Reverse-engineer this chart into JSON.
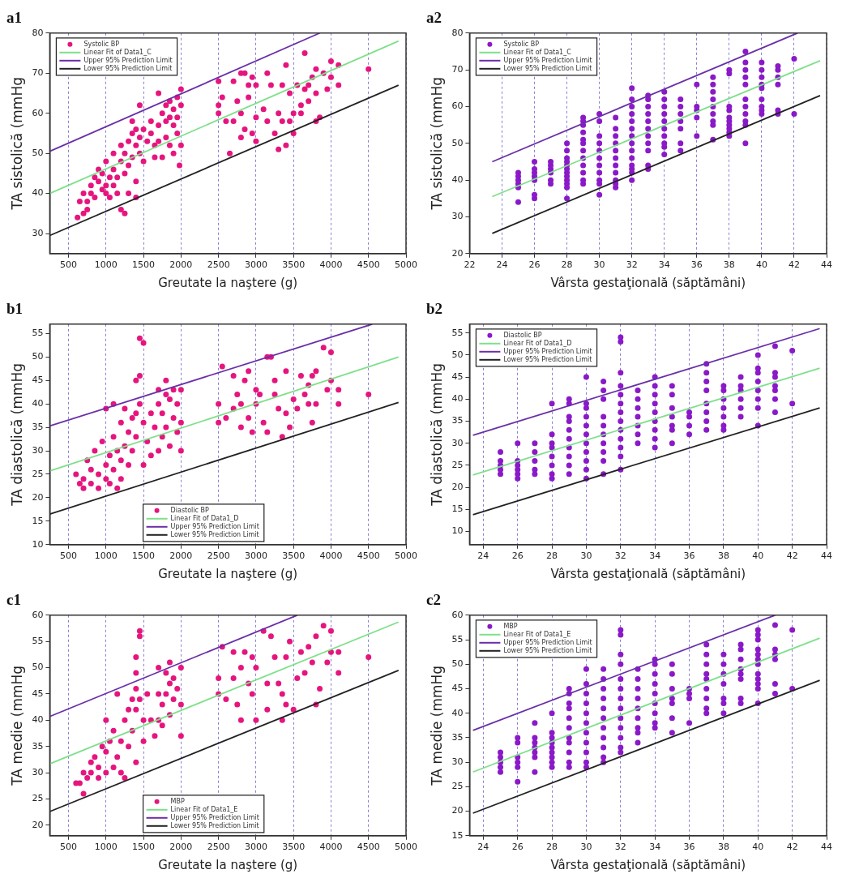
{
  "chart_data": [
    {
      "type": "scatter",
      "title": "a1",
      "xlabel": "Greutate la naştere (g)",
      "ylabel": "TA sistolică (mmHg",
      "xlim": [
        250,
        5000
      ],
      "xticks": [
        500,
        1000,
        1500,
        2000,
        2500,
        3000,
        3500,
        4000,
        4500,
        5000
      ],
      "ylim": [
        25,
        80
      ],
      "yticks": [
        30,
        40,
        50,
        60,
        70,
        80
      ],
      "grid": "x",
      "legend": "top left",
      "series": [
        {
          "name": "Systolic BP",
          "marker": "circle",
          "color": "#e6157e",
          "x": [
            620,
            650,
            700,
            700,
            750,
            750,
            800,
            800,
            850,
            850,
            900,
            900,
            950,
            950,
            1000,
            1000,
            1000,
            1050,
            1050,
            1100,
            1100,
            1100,
            1150,
            1150,
            1200,
            1200,
            1200,
            1250,
            1250,
            1250,
            1300,
            1300,
            1300,
            1350,
            1350,
            1350,
            1400,
            1400,
            1400,
            1400,
            1450,
            1450,
            1450,
            1500,
            1500,
            1550,
            1600,
            1600,
            1650,
            1650,
            1700,
            1700,
            1700,
            1750,
            1750,
            1800,
            1800,
            1800,
            1850,
            1850,
            1850,
            1900,
            1900,
            1900,
            1950,
            1950,
            1950,
            2000,
            2000,
            2000,
            1980,
            2500,
            2500,
            2500,
            2550,
            2600,
            2650,
            2700,
            2700,
            2750,
            2800,
            2800,
            2800,
            2850,
            2850,
            2900,
            2900,
            2950,
            2950,
            3000,
            3000,
            3000,
            3100,
            3150,
            3150,
            3200,
            3250,
            3300,
            3300,
            3350,
            3350,
            3400,
            3400,
            3450,
            3450,
            3500,
            3500,
            3550,
            3600,
            3600,
            3650,
            3650,
            3700,
            3700,
            3750,
            3800,
            3800,
            3800,
            3850,
            3900,
            3950,
            4000,
            4000,
            4100,
            4100,
            4500
          ],
          "values": [
            34,
            38,
            35,
            40,
            36,
            38,
            40,
            42,
            44,
            39,
            46,
            43,
            45,
            41,
            42,
            48,
            40,
            44,
            39,
            46,
            42,
            50,
            40,
            44,
            36,
            48,
            52,
            35,
            45,
            50,
            40,
            53,
            47,
            49,
            55,
            58,
            52,
            56,
            43,
            39,
            50,
            54,
            62,
            48,
            56,
            53,
            55,
            58,
            52,
            49,
            65,
            57,
            53,
            60,
            49,
            62,
            58,
            54,
            63,
            59,
            52,
            61,
            57,
            50,
            64,
            59,
            55,
            66,
            62,
            52,
            47,
            68,
            62,
            60,
            64,
            58,
            50,
            68,
            58,
            63,
            70,
            60,
            54,
            70,
            56,
            67,
            64,
            55,
            69,
            67,
            59,
            53,
            61,
            70,
            58,
            67,
            55,
            60,
            51,
            67,
            58,
            72,
            52,
            65,
            58,
            60,
            55,
            67,
            62,
            60,
            75,
            66,
            63,
            67,
            69,
            71,
            65,
            58,
            59,
            70,
            66,
            73,
            69,
            72,
            67,
            71
          ]
        },
        {
          "name": "Linear Fit of Data1_C",
          "type": "line",
          "color": "#7ee08a",
          "x": [
            250,
            4900
          ],
          "values": [
            40,
            78
          ]
        },
        {
          "name": "Upper 95% Prediction Limit",
          "type": "line",
          "color": "#6a2fa8",
          "x": [
            250,
            3850
          ],
          "values": [
            50.5,
            80
          ]
        },
        {
          "name": "Lower 95% Prediction Limit",
          "type": "line",
          "color": "#222222",
          "x": [
            250,
            4900
          ],
          "values": [
            29.5,
            67
          ]
        }
      ]
    },
    {
      "type": "scatter",
      "title": "a2",
      "xlabel": "Vârsta gestaţională (săptămâni)",
      "ylabel": "TA sistolică (mmHg",
      "xlim": [
        22,
        44
      ],
      "xticks": [
        22,
        24,
        26,
        28,
        30,
        32,
        34,
        36,
        38,
        40,
        42,
        44
      ],
      "ylim": [
        20,
        80
      ],
      "yticks": [
        20,
        30,
        40,
        50,
        60,
        70,
        80
      ],
      "grid": "x",
      "legend": "top left",
      "series": [
        {
          "name": "Systolic BP",
          "marker": "circle",
          "color": "#8a19c8",
          "x": [
            25,
            25,
            25,
            25,
            25,
            25,
            26,
            26,
            26,
            26,
            26,
            26,
            26,
            27,
            27,
            27,
            27,
            27,
            27,
            28,
            28,
            28,
            28,
            28,
            28,
            28,
            28,
            28,
            28,
            28,
            28,
            29,
            29,
            29,
            29,
            29,
            29,
            29,
            29,
            29,
            29,
            29,
            29,
            30,
            30,
            30,
            30,
            30,
            30,
            30,
            30,
            30,
            30,
            30,
            31,
            31,
            31,
            31,
            31,
            31,
            31,
            31,
            31,
            31,
            31,
            32,
            32,
            32,
            32,
            32,
            32,
            32,
            32,
            32,
            32,
            32,
            32,
            32,
            32,
            33,
            33,
            33,
            33,
            33,
            33,
            33,
            33,
            33,
            33,
            33,
            34,
            34,
            34,
            34,
            34,
            34,
            34,
            34,
            34,
            34,
            35,
            35,
            35,
            35,
            35,
            35,
            35,
            36,
            36,
            36,
            36,
            36,
            37,
            37,
            37,
            37,
            37,
            37,
            37,
            37,
            37,
            38,
            38,
            38,
            38,
            38,
            38,
            38,
            38,
            38,
            38,
            39,
            39,
            39,
            39,
            39,
            39,
            39,
            39,
            39,
            39,
            39,
            40,
            40,
            40,
            40,
            40,
            40,
            40,
            40,
            40,
            41,
            41,
            41,
            41,
            41,
            41,
            42,
            42
          ],
          "values": [
            34,
            38,
            39,
            40,
            41,
            42,
            35,
            36,
            40,
            41,
            42,
            43,
            45,
            39,
            40,
            42,
            43,
            44,
            45,
            35,
            38,
            39,
            40,
            41,
            42,
            43,
            44,
            45,
            46,
            48,
            50,
            39,
            40,
            42,
            44,
            46,
            48,
            50,
            51,
            53,
            55,
            56,
            57,
            36,
            39,
            40,
            42,
            44,
            46,
            48,
            50,
            52,
            56,
            58,
            38,
            39,
            40,
            42,
            44,
            46,
            48,
            50,
            52,
            54,
            57,
            40,
            42,
            43,
            44,
            46,
            48,
            50,
            52,
            54,
            56,
            58,
            60,
            62,
            65,
            43,
            44,
            48,
            50,
            52,
            54,
            56,
            58,
            60,
            62,
            63,
            47,
            49,
            50,
            52,
            54,
            56,
            58,
            60,
            62,
            64,
            48,
            50,
            54,
            56,
            58,
            60,
            62,
            52,
            57,
            59,
            60,
            66,
            51,
            55,
            56,
            58,
            60,
            62,
            64,
            66,
            68,
            52,
            53,
            54,
            55,
            56,
            57,
            59,
            60,
            69,
            70,
            50,
            55,
            56,
            58,
            60,
            62,
            66,
            68,
            70,
            72,
            75,
            58,
            59,
            60,
            62,
            65,
            66,
            68,
            70,
            72,
            58,
            59,
            66,
            68,
            70,
            71,
            58,
            73
          ]
        },
        {
          "name": "Linear Fit of Data1_C",
          "type": "line",
          "color": "#7ee08a",
          "x": [
            23.4,
            43.6
          ],
          "values": [
            35.5,
            72.5
          ]
        },
        {
          "name": "Upper 95% Prediction Limit",
          "type": "line",
          "color": "#6a2fa8",
          "x": [
            23.4,
            42.2
          ],
          "values": [
            45,
            80
          ]
        },
        {
          "name": "Lower 95% Prediction Limit",
          "type": "line",
          "color": "#222222",
          "x": [
            23.4,
            43.6
          ],
          "values": [
            25.5,
            63
          ]
        }
      ]
    },
    {
      "type": "scatter",
      "title": "b1",
      "xlabel": "Greutate la naştere (g)",
      "ylabel": "TA diastolică (mmHg",
      "xlim": [
        250,
        5000
      ],
      "xticks": [
        500,
        1000,
        1500,
        2000,
        2500,
        3000,
        3500,
        4000,
        4500,
        5000
      ],
      "ylim": [
        10,
        57
      ],
      "yticks": [
        10,
        15,
        20,
        25,
        30,
        35,
        40,
        45,
        50,
        55
      ],
      "grid": "x",
      "legend": "bottom",
      "series": [
        {
          "name": "Diastolic BP",
          "marker": "circle",
          "color": "#e6157e",
          "x": [
            600,
            650,
            700,
            700,
            750,
            800,
            800,
            850,
            900,
            900,
            950,
            1000,
            1000,
            1000,
            1050,
            1050,
            1100,
            1100,
            1100,
            1150,
            1150,
            1200,
            1200,
            1200,
            1250,
            1250,
            1300,
            1300,
            1350,
            1350,
            1400,
            1400,
            1400,
            1450,
            1450,
            1450,
            1500,
            1500,
            1500,
            1550,
            1600,
            1600,
            1650,
            1700,
            1700,
            1700,
            1750,
            1750,
            1800,
            1800,
            1800,
            1850,
            1850,
            1900,
            1900,
            1950,
            1950,
            2000,
            2000,
            2000,
            2500,
            2500,
            2550,
            2600,
            2700,
            2700,
            2750,
            2800,
            2800,
            2850,
            2900,
            2900,
            2950,
            3000,
            3000,
            3050,
            3100,
            3150,
            3150,
            3200,
            3250,
            3250,
            3300,
            3350,
            3400,
            3400,
            3450,
            3500,
            3550,
            3600,
            3650,
            3700,
            3700,
            3750,
            3750,
            3800,
            3800,
            3900,
            3950,
            4000,
            4000,
            4100,
            4100,
            4500
          ],
          "values": [
            25,
            23,
            24,
            22,
            28,
            26,
            23,
            30,
            25,
            22,
            32,
            27,
            24,
            39,
            29,
            23,
            33,
            26,
            40,
            30,
            22,
            36,
            28,
            24,
            31,
            39,
            34,
            27,
            37,
            30,
            45,
            38,
            33,
            54,
            46,
            40,
            53,
            36,
            27,
            32,
            38,
            29,
            35,
            43,
            40,
            30,
            38,
            33,
            45,
            42,
            35,
            41,
            31,
            43,
            37,
            40,
            34,
            43,
            36,
            30,
            40,
            36,
            48,
            37,
            46,
            39,
            42,
            35,
            40,
            45,
            47,
            37,
            34,
            43,
            40,
            42,
            36,
            50,
            34,
            50,
            45,
            42,
            39,
            33,
            38,
            47,
            35,
            41,
            39,
            46,
            42,
            44,
            40,
            46,
            36,
            47,
            40,
            52,
            43,
            51,
            45,
            43,
            40,
            42
          ]
        },
        {
          "name": "Linear Fit of Data1_D",
          "type": "line",
          "color": "#7ee08a",
          "x": [
            250,
            4900
          ],
          "values": [
            25.7,
            50
          ]
        },
        {
          "name": "Upper 95% Prediction Limit",
          "type": "line",
          "color": "#6a2fa8",
          "x": [
            250,
            4550
          ],
          "values": [
            35.3,
            57
          ]
        },
        {
          "name": "Lower 95% Prediction Limit",
          "type": "line",
          "color": "#222222",
          "x": [
            250,
            4900
          ],
          "values": [
            16.5,
            40.3
          ]
        }
      ]
    },
    {
      "type": "scatter",
      "title": "b2",
      "xlabel": "Vârsta gestaţională (săptămâni)",
      "ylabel": "TA diastolică (mmHg",
      "xlim": [
        23.2,
        44
      ],
      "xticks": [
        24,
        26,
        28,
        30,
        32,
        34,
        36,
        38,
        40,
        42,
        44
      ],
      "ylim": [
        7,
        57
      ],
      "yticks": [
        10,
        15,
        20,
        25,
        30,
        35,
        40,
        45,
        50,
        55
      ],
      "grid": "x",
      "legend": "top left",
      "series": [
        {
          "name": "Diastolic BP",
          "marker": "circle",
          "color": "#8a19c8",
          "x": [
            25,
            25,
            25,
            25,
            25,
            26,
            26,
            26,
            26,
            26,
            26,
            27,
            27,
            27,
            27,
            27,
            28,
            28,
            28,
            28,
            28,
            28,
            28,
            28,
            29,
            29,
            29,
            29,
            29,
            29,
            29,
            29,
            29,
            29,
            30,
            30,
            30,
            30,
            30,
            30,
            30,
            30,
            30,
            30,
            30,
            31,
            31,
            31,
            31,
            31,
            31,
            31,
            31,
            31,
            31,
            32,
            32,
            32,
            32,
            32,
            32,
            32,
            32,
            32,
            32,
            32,
            32,
            32,
            33,
            33,
            33,
            33,
            33,
            33,
            33,
            34,
            34,
            34,
            34,
            34,
            34,
            34,
            34,
            34,
            35,
            35,
            35,
            35,
            35,
            35,
            35,
            36,
            36,
            36,
            36,
            37,
            37,
            37,
            37,
            37,
            37,
            37,
            37,
            38,
            38,
            38,
            38,
            38,
            38,
            38,
            39,
            39,
            39,
            39,
            39,
            39,
            40,
            40,
            40,
            40,
            40,
            40,
            40,
            40,
            41,
            41,
            41,
            41,
            41,
            41,
            41,
            42,
            42
          ],
          "values": [
            23,
            24,
            25,
            26,
            28,
            22,
            23,
            24,
            25,
            26,
            30,
            23,
            24,
            26,
            28,
            30,
            22,
            23,
            25,
            27,
            29,
            30,
            32,
            39,
            23,
            25,
            27,
            29,
            31,
            33,
            35,
            36,
            39,
            40,
            22,
            24,
            26,
            28,
            30,
            32,
            34,
            36,
            38,
            39,
            45,
            23,
            26,
            28,
            30,
            32,
            34,
            36,
            40,
            42,
            44,
            24,
            27,
            29,
            31,
            33,
            35,
            37,
            39,
            41,
            43,
            46,
            53,
            54,
            30,
            32,
            34,
            36,
            38,
            40,
            42,
            29,
            31,
            33,
            35,
            37,
            39,
            41,
            43,
            45,
            30,
            33,
            34,
            36,
            38,
            41,
            43,
            32,
            34,
            36,
            37,
            33,
            35,
            37,
            39,
            42,
            44,
            46,
            48,
            33,
            34,
            36,
            38,
            40,
            42,
            43,
            36,
            38,
            40,
            42,
            43,
            45,
            34,
            38,
            40,
            42,
            44,
            46,
            47,
            50,
            37,
            40,
            42,
            43,
            45,
            46,
            52,
            39,
            51
          ]
        },
        {
          "name": "Linear Fit of Data1_D",
          "type": "line",
          "color": "#7ee08a",
          "x": [
            23.4,
            43.6
          ],
          "values": [
            22.8,
            47
          ]
        },
        {
          "name": "Upper 95% Prediction Limit",
          "type": "line",
          "color": "#6a2fa8",
          "x": [
            23.4,
            43.6
          ],
          "values": [
            31.8,
            56
          ]
        },
        {
          "name": "Lower 95% Prediction Limit",
          "type": "line",
          "color": "#222222",
          "x": [
            23.4,
            43.6
          ],
          "values": [
            13.8,
            38
          ]
        }
      ]
    },
    {
      "type": "scatter",
      "title": "c1",
      "xlabel": "Greutate la naştere (g)",
      "ylabel": "TA medie (mmHg",
      "xlim": [
        250,
        5000
      ],
      "xticks": [
        500,
        1000,
        1500,
        2000,
        2500,
        3000,
        3500,
        4000,
        4500,
        5000
      ],
      "ylim": [
        18,
        60
      ],
      "yticks": [
        20,
        25,
        30,
        35,
        40,
        45,
        50,
        55,
        60
      ],
      "grid": "x",
      "legend": "bottom",
      "series": [
        {
          "name": "MBP",
          "marker": "circle",
          "color": "#e6157e",
          "x": [
            600,
            650,
            700,
            700,
            750,
            800,
            800,
            850,
            900,
            900,
            950,
            1000,
            1000,
            1000,
            1050,
            1100,
            1100,
            1150,
            1150,
            1200,
            1200,
            1250,
            1250,
            1300,
            1300,
            1350,
            1350,
            1400,
            1400,
            1400,
            1400,
            1400,
            1450,
            1450,
            1450,
            1500,
            1500,
            1550,
            1600,
            1650,
            1700,
            1700,
            1700,
            1750,
            1750,
            1800,
            1800,
            1850,
            1850,
            1850,
            1900,
            1900,
            1950,
            2000,
            2000,
            2000,
            2500,
            2500,
            2550,
            2600,
            2700,
            2700,
            2750,
            2800,
            2800,
            2850,
            2900,
            2950,
            2950,
            3000,
            3000,
            3100,
            3150,
            3200,
            3150,
            3250,
            3300,
            3350,
            3350,
            3400,
            3400,
            3450,
            3500,
            3550,
            3600,
            3650,
            3700,
            3750,
            3800,
            3800,
            3850,
            3900,
            3950,
            4000,
            4000,
            4100,
            4100,
            4500
          ],
          "values": [
            28,
            28,
            26,
            30,
            29,
            32,
            30,
            33,
            31,
            29,
            35,
            34,
            30,
            40,
            36,
            38,
            31,
            45,
            33,
            36,
            30,
            29,
            40,
            42,
            35,
            44,
            38,
            46,
            42,
            32,
            49,
            52,
            57,
            56,
            44,
            40,
            36,
            45,
            40,
            37,
            50,
            45,
            40,
            43,
            39,
            49,
            45,
            51,
            47,
            41,
            48,
            44,
            46,
            50,
            43,
            37,
            48,
            45,
            54,
            44,
            53,
            48,
            43,
            40,
            50,
            53,
            47,
            52,
            45,
            50,
            40,
            57,
            47,
            56,
            42,
            52,
            47,
            45,
            40,
            52,
            43,
            55,
            42,
            48,
            53,
            49,
            54,
            51,
            56,
            43,
            46,
            58,
            51,
            57,
            53,
            49,
            53,
            52
          ]
        },
        {
          "name": "Linear Fit of Data1_E",
          "type": "line",
          "color": "#7ee08a",
          "x": [
            250,
            4900
          ],
          "values": [
            31.7,
            58.7
          ]
        },
        {
          "name": "Upper 95% Prediction Limit",
          "type": "line",
          "color": "#6a2fa8",
          "x": [
            250,
            3550
          ],
          "values": [
            40.7,
            60
          ]
        },
        {
          "name": "Lower 95% Prediction Limit",
          "type": "line",
          "color": "#222222",
          "x": [
            250,
            4900
          ],
          "values": [
            22.6,
            49.5
          ]
        }
      ]
    },
    {
      "type": "scatter",
      "title": "c2",
      "xlabel": "Vârsta gestaţională (săptămâni)",
      "ylabel": "TA medie (mmHg",
      "xlim": [
        23.2,
        44
      ],
      "xticks": [
        24,
        26,
        28,
        30,
        32,
        34,
        36,
        38,
        40,
        42,
        44
      ],
      "ylim": [
        15,
        60
      ],
      "yticks": [
        15,
        20,
        25,
        30,
        35,
        40,
        45,
        50,
        55,
        60
      ],
      "grid": "x",
      "legend": "top left",
      "series": [
        {
          "name": "MBP",
          "marker": "circle",
          "color": "#8a19c8",
          "x": [
            25,
            25,
            25,
            25,
            25,
            26,
            26,
            26,
            26,
            26,
            26,
            27,
            27,
            27,
            27,
            27,
            27,
            27,
            28,
            28,
            28,
            28,
            28,
            28,
            28,
            28,
            28,
            29,
            29,
            29,
            29,
            29,
            29,
            29,
            29,
            29,
            29,
            29,
            30,
            30,
            30,
            30,
            30,
            30,
            30,
            30,
            30,
            30,
            30,
            31,
            31,
            31,
            31,
            31,
            31,
            31,
            31,
            31,
            31,
            31,
            32,
            32,
            32,
            32,
            32,
            32,
            32,
            32,
            32,
            32,
            32,
            32,
            32,
            33,
            33,
            33,
            33,
            33,
            33,
            33,
            33,
            33,
            34,
            34,
            34,
            34,
            34,
            34,
            34,
            34,
            34,
            35,
            35,
            35,
            35,
            35,
            35,
            35,
            36,
            36,
            36,
            36,
            37,
            37,
            37,
            37,
            37,
            37,
            37,
            37,
            37,
            38,
            38,
            38,
            38,
            38,
            38,
            38,
            39,
            39,
            39,
            39,
            39,
            39,
            39,
            39,
            40,
            40,
            40,
            40,
            40,
            40,
            40,
            40,
            40,
            40,
            40,
            40,
            41,
            41,
            41,
            41,
            41,
            41,
            42,
            42
          ],
          "values": [
            28,
            29,
            30,
            31,
            32,
            26,
            29,
            30,
            31,
            34,
            35,
            28,
            31,
            32,
            33,
            34,
            35,
            38,
            29,
            30,
            31,
            32,
            33,
            34,
            35,
            36,
            40,
            29,
            30,
            32,
            34,
            35,
            37,
            39,
            41,
            42,
            44,
            45,
            29,
            30,
            32,
            34,
            36,
            38,
            40,
            42,
            44,
            46,
            49,
            30,
            31,
            33,
            35,
            37,
            39,
            41,
            43,
            45,
            47,
            49,
            32,
            33,
            35,
            37,
            39,
            41,
            43,
            45,
            47,
            50,
            52,
            56,
            57,
            34,
            36,
            37,
            39,
            41,
            43,
            45,
            47,
            49,
            37,
            38,
            40,
            42,
            44,
            46,
            48,
            50,
            51,
            36,
            39,
            42,
            43,
            45,
            48,
            50,
            38,
            43,
            44,
            45,
            40,
            41,
            43,
            45,
            47,
            48,
            50,
            52,
            54,
            40,
            42,
            43,
            46,
            48,
            50,
            52,
            42,
            43,
            47,
            48,
            49,
            51,
            53,
            54,
            42,
            45,
            46,
            47,
            48,
            50,
            51,
            52,
            53,
            55,
            56,
            57,
            44,
            46,
            51,
            52,
            53,
            58,
            45,
            57
          ]
        },
        {
          "name": "Linear Fit of Data1_E",
          "type": "line",
          "color": "#7ee08a",
          "x": [
            23.4,
            43.6
          ],
          "values": [
            28,
            55.3
          ]
        },
        {
          "name": "Upper 95% Prediction Limit",
          "type": "line",
          "color": "#6a2fa8",
          "x": [
            23.4,
            41
          ],
          "values": [
            36.5,
            60
          ]
        },
        {
          "name": "Lower 95% Prediction Limit",
          "type": "line",
          "color": "#222222",
          "x": [
            23.4,
            43.6
          ],
          "values": [
            19.6,
            46.7
          ]
        }
      ]
    }
  ]
}
